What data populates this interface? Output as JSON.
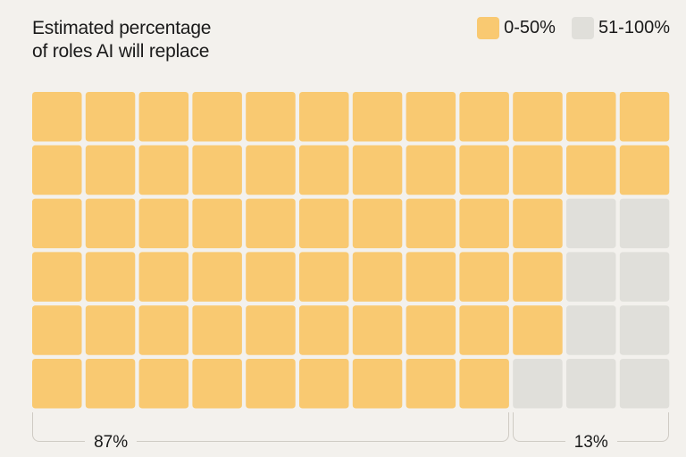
{
  "chart_data": {
    "type": "waffle",
    "title": "Estimated percentage\nof roles AI will replace",
    "legend": [
      {
        "label": "0-50%",
        "color": "#f9c971"
      },
      {
        "label": "51-100%",
        "color": "#e0dfda"
      }
    ],
    "legend_position": "top-right",
    "rows": 6,
    "cols": 12,
    "cells_by_row": [
      [
        0,
        0,
        0,
        0,
        0,
        0,
        0,
        0,
        0,
        0,
        0,
        0
      ],
      [
        0,
        0,
        0,
        0,
        0,
        0,
        0,
        0,
        0,
        0,
        0,
        0
      ],
      [
        0,
        0,
        0,
        0,
        0,
        0,
        0,
        0,
        0,
        0,
        1,
        1
      ],
      [
        0,
        0,
        0,
        0,
        0,
        0,
        0,
        0,
        0,
        0,
        1,
        1
      ],
      [
        0,
        0,
        0,
        0,
        0,
        0,
        0,
        0,
        0,
        0,
        1,
        1
      ],
      [
        0,
        0,
        0,
        0,
        0,
        0,
        0,
        0,
        0,
        1,
        1,
        1
      ]
    ],
    "annotations": [
      {
        "label": "87%",
        "category": "0-50%",
        "col_start": 0,
        "col_end": 8
      },
      {
        "label": "13%",
        "category": "51-100%",
        "col_start": 9,
        "col_end": 11
      }
    ]
  }
}
